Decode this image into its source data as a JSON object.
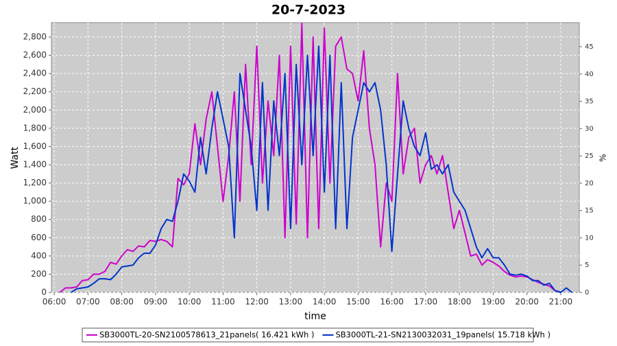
{
  "chart_data": {
    "type": "line",
    "title": "20-7-2023",
    "x_label": "time",
    "y_label": "Watt",
    "y2_label": "%",
    "x": [
      "06:10",
      "06:20",
      "06:30",
      "06:40",
      "06:50",
      "07:00",
      "07:10",
      "07:20",
      "07:30",
      "07:40",
      "07:50",
      "08:00",
      "08:10",
      "08:20",
      "08:30",
      "08:40",
      "08:50",
      "09:00",
      "09:10",
      "09:20",
      "09:30",
      "09:40",
      "09:50",
      "10:00",
      "10:10",
      "10:20",
      "10:30",
      "10:40",
      "10:50",
      "11:00",
      "11:10",
      "11:20",
      "11:30",
      "11:40",
      "11:50",
      "12:00",
      "12:10",
      "12:20",
      "12:30",
      "12:40",
      "12:50",
      "13:00",
      "13:10",
      "13:20",
      "13:30",
      "13:40",
      "13:50",
      "14:00",
      "14:10",
      "14:20",
      "14:30",
      "14:40",
      "14:50",
      "15:00",
      "15:10",
      "15:20",
      "15:30",
      "15:40",
      "15:50",
      "16:00",
      "16:10",
      "16:20",
      "16:30",
      "16:40",
      "16:50",
      "17:00",
      "17:10",
      "17:20",
      "17:30",
      "17:40",
      "17:50",
      "18:00",
      "18:10",
      "18:20",
      "18:30",
      "18:40",
      "18:50",
      "19:00",
      "19:10",
      "19:20",
      "19:30",
      "19:40",
      "19:50",
      "20:00",
      "20:10",
      "20:20",
      "20:30",
      "20:40",
      "20:50",
      "21:00",
      "21:10",
      "21:20"
    ],
    "series": [
      {
        "name": "SB3000TL-20-SN2100578613_21panels( 16.421 kWh )",
        "color": "#cc00cc",
        "values": [
          0,
          50,
          50,
          60,
          130,
          140,
          200,
          200,
          230,
          330,
          310,
          400,
          470,
          450,
          510,
          500,
          570,
          560,
          580,
          560,
          500,
          1250,
          1180,
          1300,
          1850,
          1400,
          1900,
          2200,
          1600,
          1000,
          1500,
          2200,
          1000,
          2500,
          1400,
          2700,
          1200,
          2100,
          1500,
          2600,
          600,
          2700,
          750,
          2950,
          600,
          2800,
          700,
          2900,
          1200,
          2700,
          2800,
          2450,
          2400,
          2100,
          2650,
          1800,
          1400,
          500,
          1200,
          1000,
          2400,
          1300,
          1700,
          1800,
          1200,
          1400,
          1500,
          1300,
          1500,
          1100,
          700,
          900,
          650,
          400,
          420,
          300,
          360,
          330,
          290,
          230,
          190,
          170,
          180,
          170,
          140,
          110,
          90,
          70,
          20,
          5,
          null,
          null
        ]
      },
      {
        "name": "SB3000TL-21-SN2130032031_19panels( 15.718 kWh )",
        "color": "#0033cc",
        "values": [
          null,
          null,
          0,
          40,
          50,
          60,
          100,
          150,
          150,
          140,
          200,
          280,
          290,
          300,
          380,
          430,
          430,
          520,
          700,
          800,
          780,
          1000,
          1300,
          1220,
          1100,
          1700,
          1300,
          1800,
          2200,
          1900,
          1600,
          600,
          2400,
          2000,
          1600,
          900,
          2300,
          900,
          2100,
          1500,
          2400,
          700,
          2500,
          1400,
          2600,
          1500,
          2700,
          1100,
          2600,
          700,
          2300,
          700,
          1700,
          2000,
          2300,
          2200,
          2300,
          2000,
          1400,
          450,
          1300,
          2100,
          1800,
          1600,
          1500,
          1750,
          1350,
          1400,
          1300,
          1400,
          1100,
          1000,
          900,
          700,
          500,
          380,
          480,
          380,
          380,
          300,
          200,
          190,
          200,
          180,
          130,
          130,
          80,
          100,
          20,
          0,
          50,
          0
        ]
      }
    ],
    "xlim": [
      "05:55",
      "21:33"
    ],
    "xticks": [
      "06:00",
      "07:00",
      "08:00",
      "09:00",
      "10:00",
      "11:00",
      "12:00",
      "13:00",
      "14:00",
      "15:00",
      "16:00",
      "17:00",
      "18:00",
      "19:00",
      "20:00",
      "21:00"
    ],
    "ylim": [
      0,
      2958
    ],
    "yticks": [
      0,
      200,
      400,
      600,
      800,
      {
        "value": 1000,
        "label": "1,000"
      },
      {
        "value": 1200,
        "label": "1,200"
      },
      {
        "value": 1400,
        "label": "1,400"
      },
      {
        "value": 1600,
        "label": "1,600"
      },
      {
        "value": 1800,
        "label": "1,800"
      },
      {
        "value": 2000,
        "label": "2,000"
      },
      {
        "value": 2200,
        "label": "2,200"
      },
      {
        "value": 2400,
        "label": "2,400"
      },
      {
        "value": 2600,
        "label": "2,600"
      },
      {
        "value": 2800,
        "label": "2,800"
      }
    ],
    "y2lim": [
      0,
      49.4
    ],
    "y2ticks": [
      0,
      5,
      10,
      15,
      20,
      25,
      30,
      35,
      40,
      45
    ],
    "grid": true
  }
}
